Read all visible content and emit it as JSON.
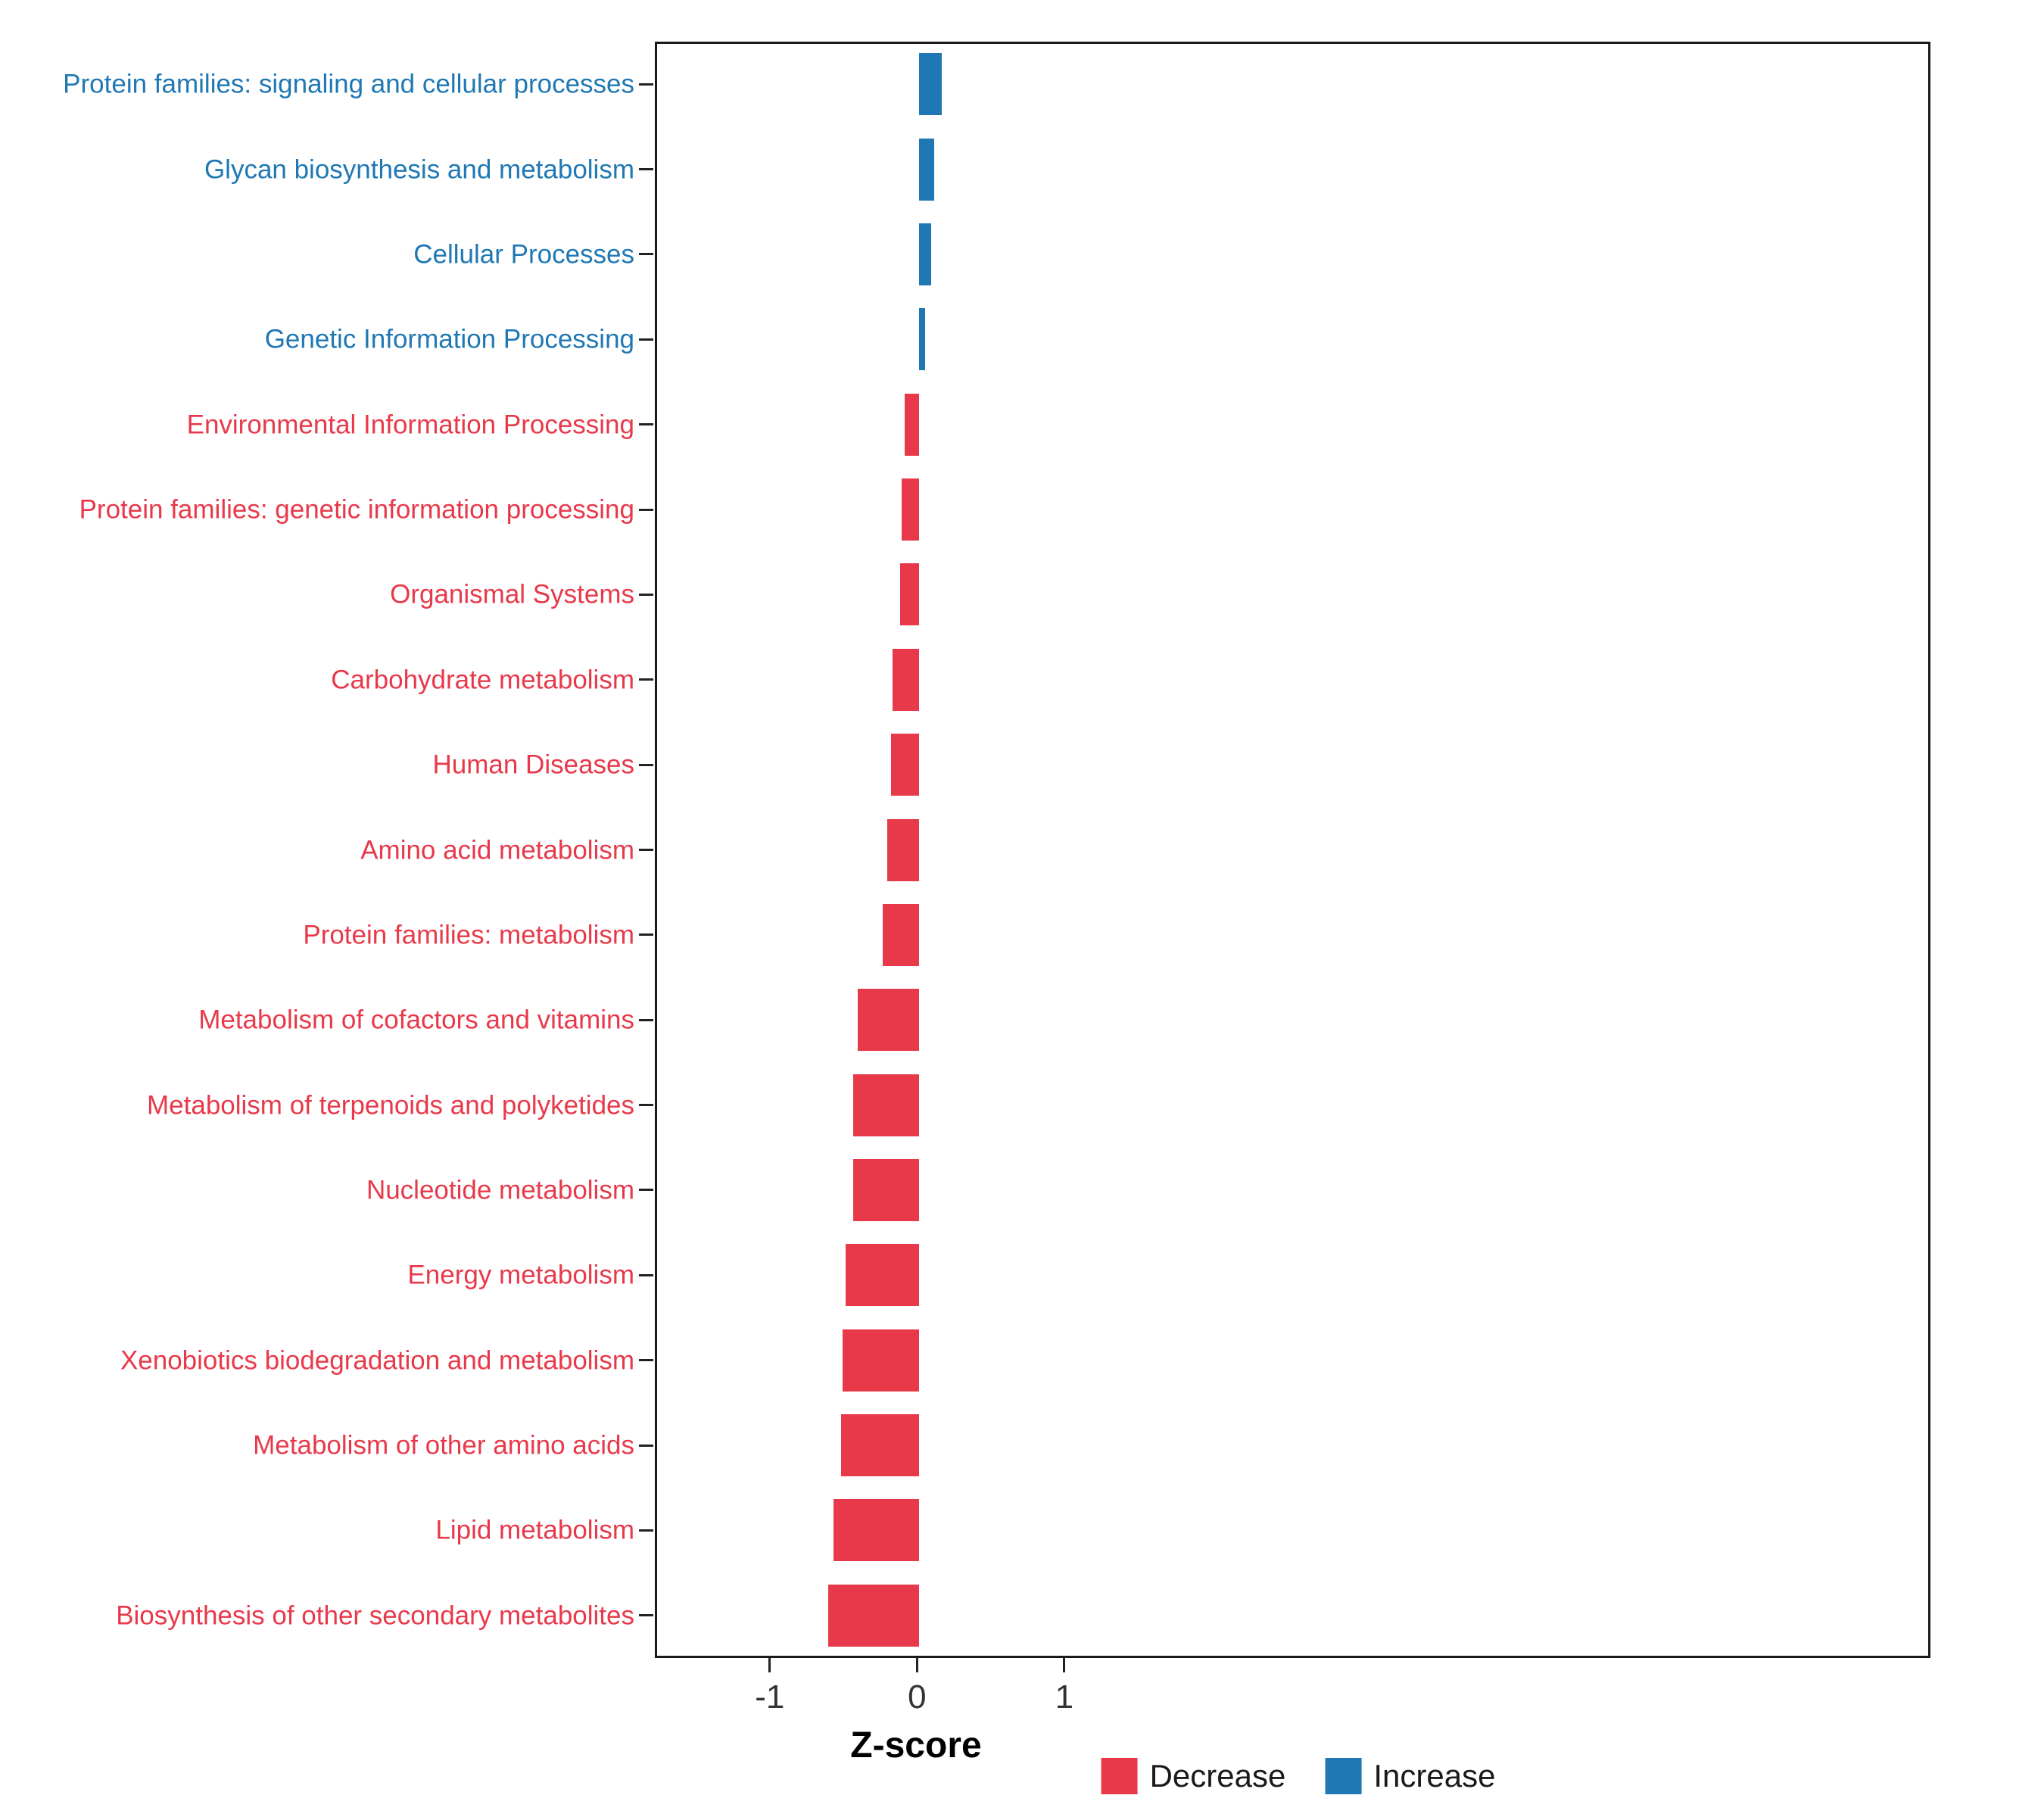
{
  "chart_data": {
    "type": "bar",
    "orientation": "horizontal",
    "title": "",
    "xlabel": "Z-score",
    "ylabel": "",
    "xlim": [
      -1.78,
      6.88
    ],
    "xticks": [
      -1,
      0,
      1
    ],
    "xtick_labels": [
      "-1",
      "0",
      "1"
    ],
    "grid": false,
    "legend_position": "bottom",
    "legend": [
      "Decrease",
      "Increase"
    ],
    "colors": {
      "decrease": "#E8394A",
      "increase": "#1F78B4",
      "axis_text": "#333333",
      "tick": "#222222",
      "panel_border": "#1A1A1A"
    },
    "categories": [
      "Protein families: signaling and cellular processes",
      "Glycan biosynthesis and metabolism",
      "Cellular Processes",
      "Genetic Information Processing",
      "Environmental Information Processing",
      "Protein families: genetic information processing",
      "Organismal Systems",
      "Carbohydrate metabolism",
      "Human Diseases",
      "Amino acid metabolism",
      "Protein families: metabolism",
      "Metabolism of cofactors and vitamins",
      "Metabolism of terpenoids and polyketides",
      "Nucleotide metabolism",
      "Energy metabolism",
      "Xenobiotics biodegradation and metabolism",
      "Metabolism of other amino acids",
      "Lipid metabolism",
      "Biosynthesis of other secondary metabolites"
    ],
    "values": [
      0.15,
      0.1,
      0.08,
      0.04,
      -0.1,
      -0.12,
      -0.13,
      -0.18,
      -0.19,
      -0.22,
      -0.25,
      -0.42,
      -0.45,
      -0.45,
      -0.5,
      -0.52,
      -0.53,
      -0.58,
      -0.62
    ],
    "directions": [
      "Increase",
      "Increase",
      "Increase",
      "Increase",
      "Decrease",
      "Decrease",
      "Decrease",
      "Decrease",
      "Decrease",
      "Decrease",
      "Decrease",
      "Decrease",
      "Decrease",
      "Decrease",
      "Decrease",
      "Decrease",
      "Decrease",
      "Decrease",
      "Decrease"
    ]
  }
}
